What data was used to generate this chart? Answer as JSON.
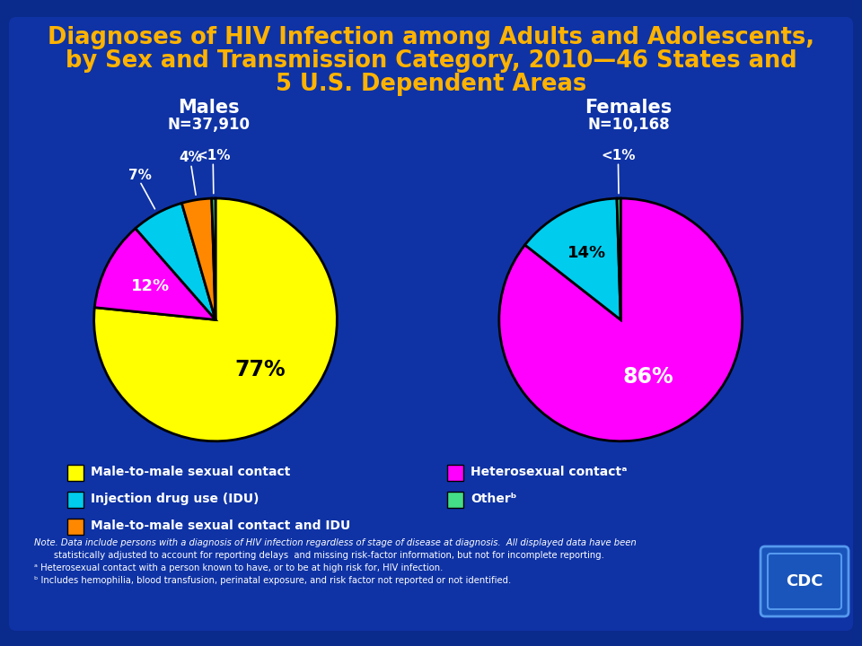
{
  "title_line1": "Diagnoses of HIV Infection among Adults and Adolescents,",
  "title_line2": "by Sex and Transmission Category, 2010—46 States and",
  "title_line3": "5 U.S. Dependent Areas",
  "title_color": "#FFB300",
  "bg_outer": "#0A2A8C",
  "bg_inner": "#1035A8",
  "males_title": "Males",
  "males_n": "N=37,910",
  "females_title": "Females",
  "females_n": "N=10,168",
  "males_slices": [
    77,
    12,
    7,
    4,
    0.5
  ],
  "males_colors": [
    "#FFFF00",
    "#FF00FF",
    "#00CCEE",
    "#FF8800",
    "#44DD88"
  ],
  "females_slices": [
    86,
    14,
    0.5
  ],
  "females_colors": [
    "#FF00FF",
    "#00CCEE",
    "#44DD88"
  ],
  "legend_left": [
    {
      "label": "Male-to-male sexual contact",
      "color": "#FFFF00"
    },
    {
      "label": "Injection drug use (IDU)",
      "color": "#00CCEE"
    },
    {
      "label": "Male-to-male sexual contact and IDU",
      "color": "#FF8800"
    }
  ],
  "legend_right": [
    {
      "label": "Heterosexual contactᵃ",
      "color": "#FF00FF"
    },
    {
      "label": "Otherᵇ",
      "color": "#44DD88"
    }
  ],
  "note1": "Note. Data include persons with a diagnosis of HIV infection regardless of stage of disease at diagnosis.  All displayed data have been",
  "note2": "       statistically adjusted to account for reporting delays  and missing risk-factor information, but not for incomplete reporting.",
  "note3": "ᵃ Heterosexual contact with a person known to have, or to be at high risk for, HIV infection.",
  "note4": "ᵇ Includes hemophilia, blood transfusion, perinatal exposure, and risk factor not reported or not identified."
}
